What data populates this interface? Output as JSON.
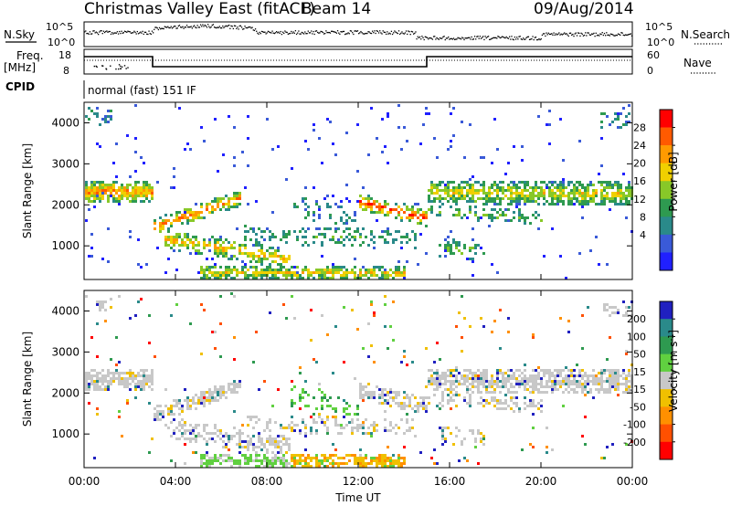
{
  "header": {
    "station": "Christmas Valley East (fitACF)",
    "beam": "Beam 14",
    "date": "09/Aug/2014"
  },
  "status_panels": {
    "nsky_label": "N.Sky",
    "nsky_ticks": [
      "10^5",
      "10^0"
    ],
    "nsearch_label": "N.Search",
    "nsearch_ticks": [
      "10^5",
      "10^0"
    ],
    "freq_label": "Freq.",
    "freq_unit": "[MHz]",
    "freq_ticks": [
      "18",
      "8"
    ],
    "nave_label": "Nave",
    "nave_ticks": [
      "60",
      "0"
    ],
    "cpid_label": "CPID",
    "cpid_value": "normal (fast) 151 IF"
  },
  "chart_data": [
    {
      "type": "heatmap",
      "name": "power",
      "ylabel": "Slant Range [km]",
      "yticks": [
        "1000",
        "2000",
        "3000",
        "4000"
      ],
      "ylim": [
        180,
        4500
      ],
      "colorbar_label": "Power [dB]",
      "colorbar_ticks": [
        "28",
        "24",
        "20",
        "16",
        "12",
        "8",
        "4"
      ],
      "colorbar_colors": [
        "#ff0000",
        "#ff5a00",
        "#ff9a00",
        "#f0d000",
        "#88c828",
        "#2e9a50",
        "#2a8a8a",
        "#3a5ad8",
        "#2020ff"
      ]
    },
    {
      "type": "heatmap",
      "name": "velocity",
      "ylabel": "Slant Range [km]",
      "yticks": [
        "1000",
        "2000",
        "3000",
        "4000"
      ],
      "ylim": [
        180,
        4500
      ],
      "colorbar_label": "Velocity [m s^-1]",
      "colorbar_ticks": [
        "200",
        "100",
        "50",
        "15",
        "-15",
        "-50",
        "-100",
        "-200"
      ],
      "colorbar_colors": [
        "#2020c0",
        "#2a8a8a",
        "#2e9a50",
        "#60d040",
        "#c8c8c8",
        "#f0c000",
        "#ff9000",
        "#ff5000",
        "#ff0000"
      ]
    }
  ],
  "xaxis": {
    "ticks": [
      "00:00",
      "04:00",
      "08:00",
      "12:00",
      "16:00",
      "20:00",
      "00:00"
    ],
    "label": "Time UT"
  }
}
